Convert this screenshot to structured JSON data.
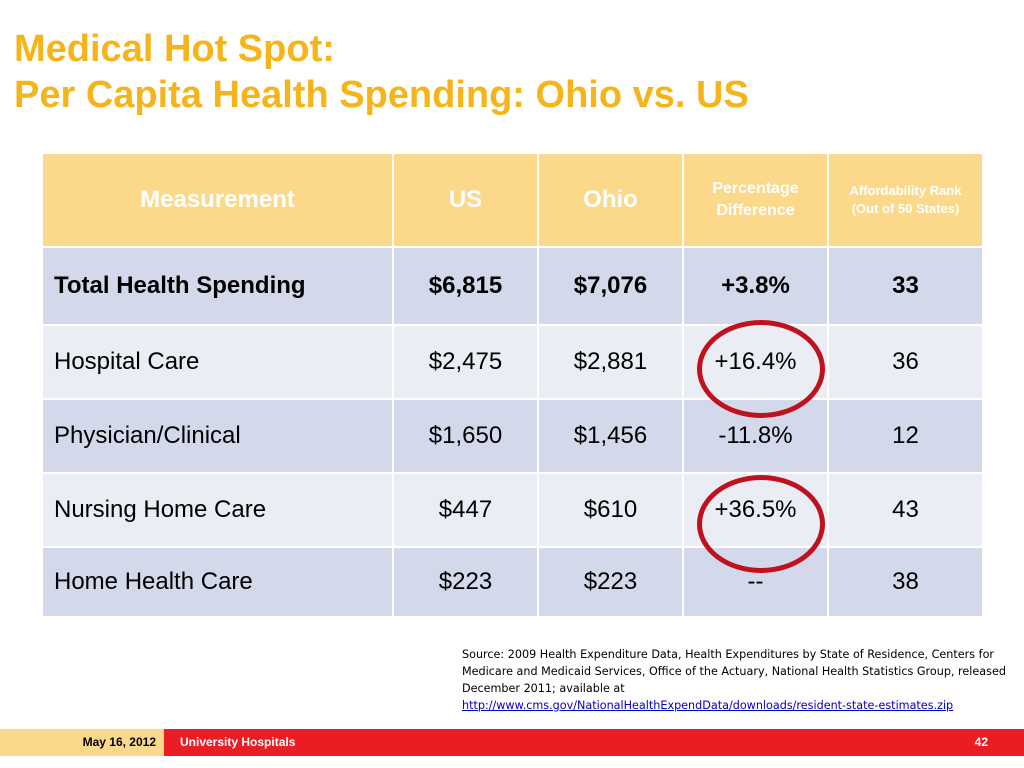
{
  "slide": {
    "title_line1": "Medical Hot Spot:",
    "title_line2": "Per Capita Health Spending: Ohio vs. US"
  },
  "table": {
    "headers": [
      "Measurement",
      "US",
      "Ohio",
      "Percentage Difference",
      "Affordability Rank (Out of 50 States)"
    ],
    "rows": [
      [
        "Total Health Spending",
        "$6,815",
        "$7,076",
        "+3.8%",
        "33"
      ],
      [
        "Hospital Care",
        "$2,475",
        "$2,881",
        "+16.4%",
        "36"
      ],
      [
        "Physician/Clinical",
        "$1,650",
        "$1,456",
        "-11.8%",
        "12"
      ],
      [
        "Nursing Home Care",
        "$447",
        "$610",
        "+36.5%",
        "43"
      ],
      [
        "Home Health Care",
        "$223",
        "$223",
        "--",
        "38"
      ]
    ]
  },
  "source": {
    "text": "Source: 2009 Health Expenditure Data, Health Expenditures by State of Residence, Centers for Medicare and Medicaid Services, Office of the Actuary, National Health Statistics Group, released December 2011; available at",
    "link": "http://www.cms.gov/NationalHealthExpendData/downloads/resident-state-estimates.zip"
  },
  "footer": {
    "date": "May 16, 2012",
    "org": "University Hospitals",
    "page": "42"
  },
  "colors": {
    "title": "#f5b41a",
    "header_bg": "#fcd98a",
    "row_dark": "#d3d9ea",
    "row_light": "#eaedf4",
    "highlight_circle": "#c0111f",
    "footer_red": "#ea1c24"
  }
}
